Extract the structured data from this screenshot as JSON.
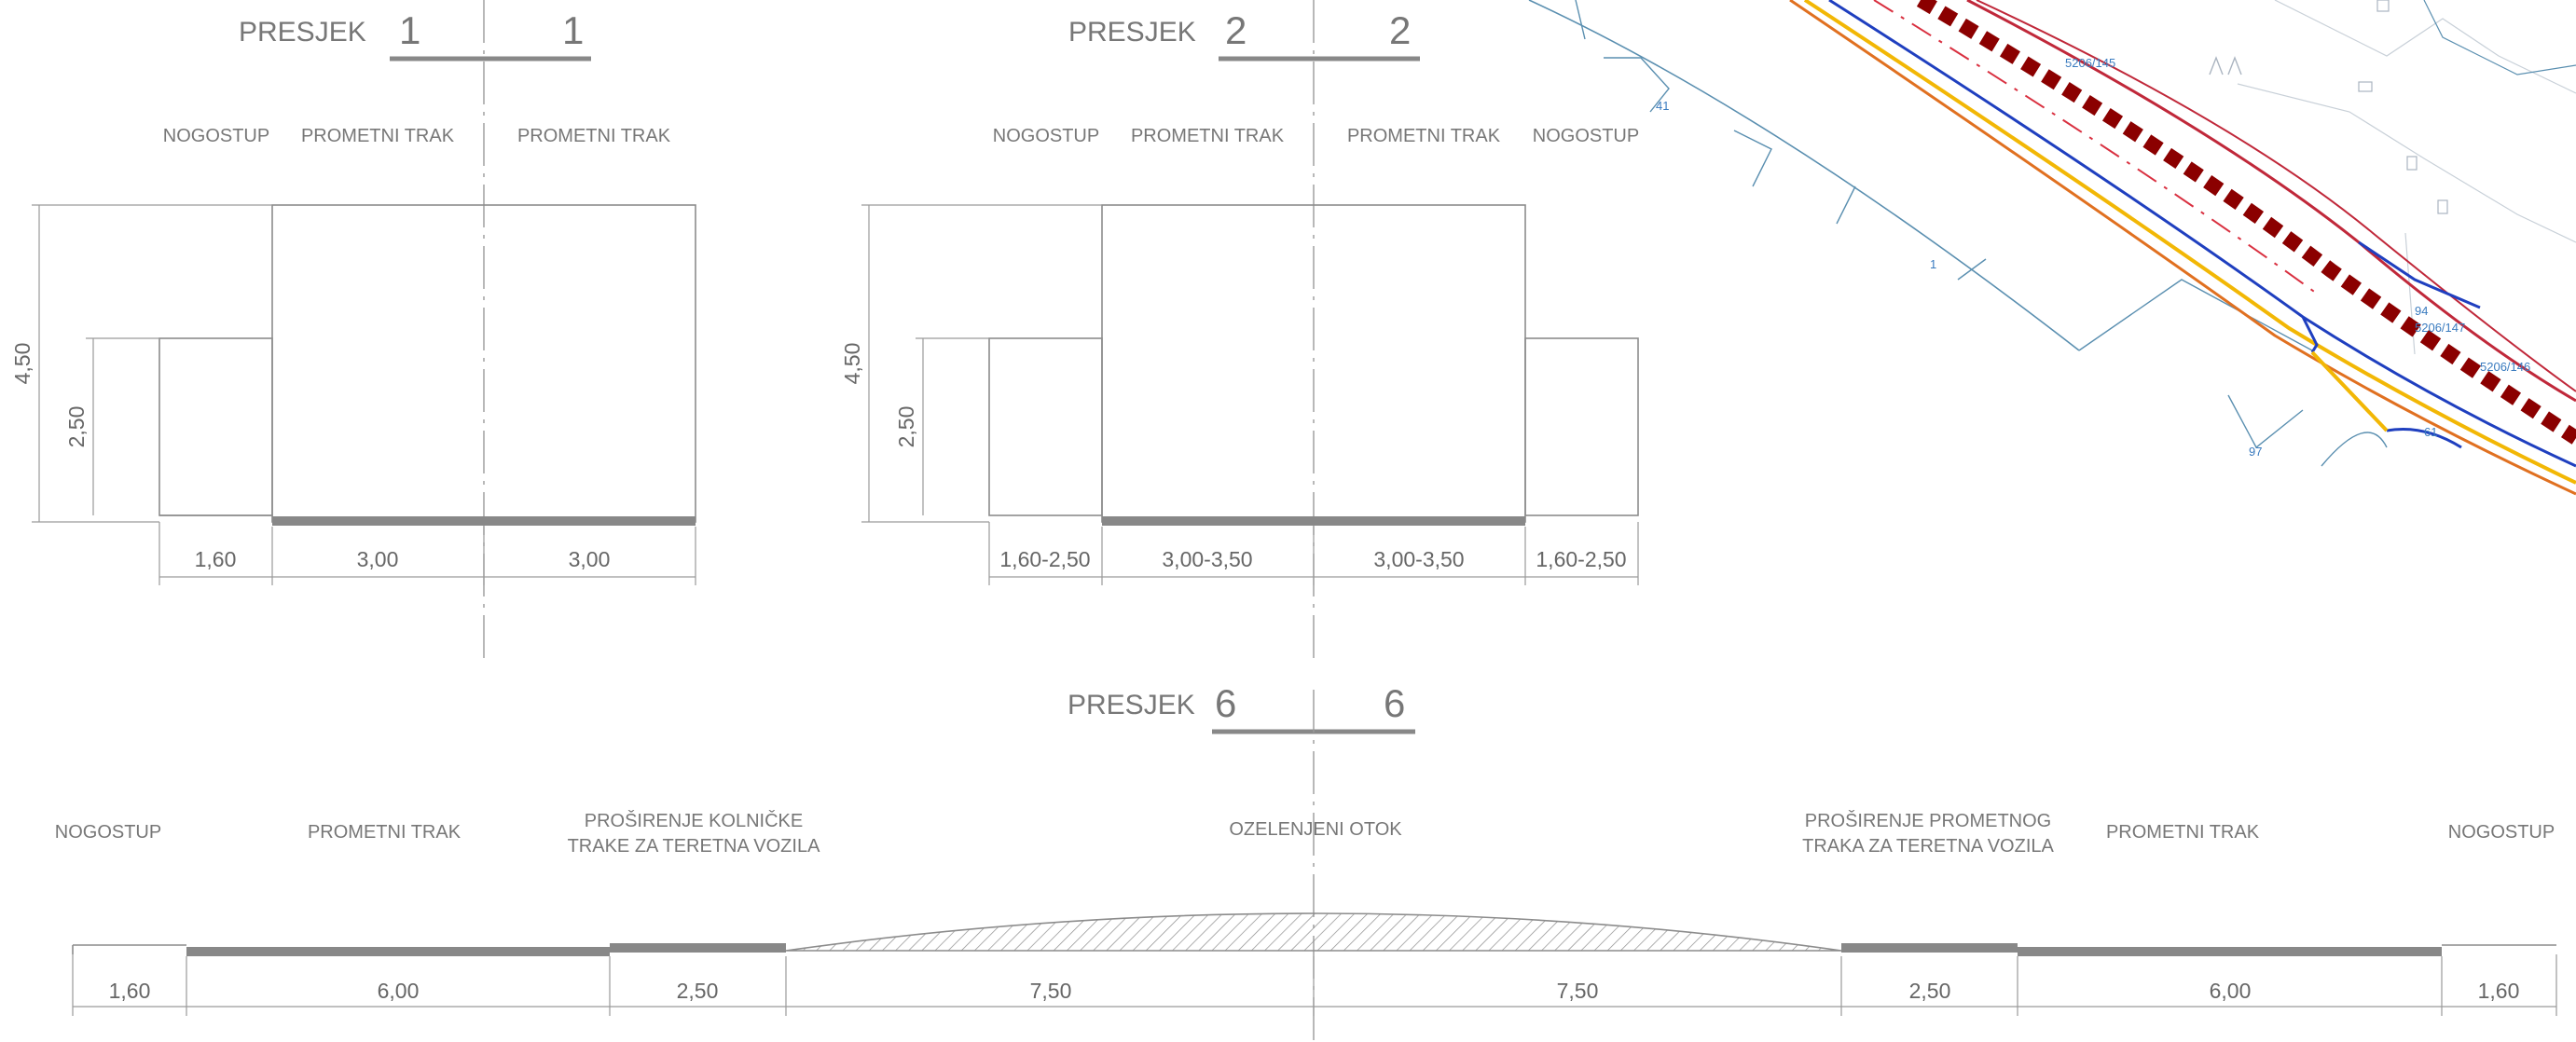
{
  "sections": [
    {
      "id": "s1",
      "title": "PRESJEK",
      "num_left": "1",
      "num_right": "1",
      "labels": [
        "NOGOSTUP",
        "PROMETNI TRAK",
        "PROMETNI TRAK"
      ],
      "height_total": "4,50",
      "height_inner": "2,50",
      "widths": [
        "1,60",
        "3,00",
        "3,00"
      ]
    },
    {
      "id": "s2",
      "title": "PRESJEK",
      "num_left": "2",
      "num_right": "2",
      "labels": [
        "NOGOSTUP",
        "PROMETNI TRAK",
        "PROMETNI TRAK",
        "NOGOSTUP"
      ],
      "height_total": "4,50",
      "height_inner": "2,50",
      "widths": [
        "1,60-2,50",
        "3,00-3,50",
        "3,00-3,50",
        "1,60-2,50"
      ]
    },
    {
      "id": "s6",
      "title": "PRESJEK",
      "num_left": "6",
      "num_right": "6",
      "labels": [
        "NOGOSTUP",
        "PROMETNI TRAK",
        "PROŠIRENJE KOLNIČKE",
        "TRAKE ZA TERETNA VOZILA",
        "OZELENJENI OTOK",
        "PROŠIRENJE PROMETNOG",
        "TRAKA ZA TERETNA VOZILA",
        "PROMETNI TRAK",
        "NOGOSTUP"
      ],
      "widths": [
        "1,60",
        "6,00",
        "2,50",
        "7,50",
        "7,50",
        "2,50",
        "6,00",
        "1,60"
      ]
    }
  ],
  "map": {
    "labels": [
      "5206/145",
      "5206/146",
      "5206/147",
      "1",
      "41",
      "97",
      "94",
      "61"
    ]
  },
  "colors": {
    "drawing_gray": "#8c8c8c",
    "road_red": "#c0283a",
    "dark_red": "#8b0000",
    "blue": "#1f3fbf",
    "yellow": "#f2b705",
    "orange": "#e07020",
    "cadastre_blue": "#5a8fb0"
  }
}
